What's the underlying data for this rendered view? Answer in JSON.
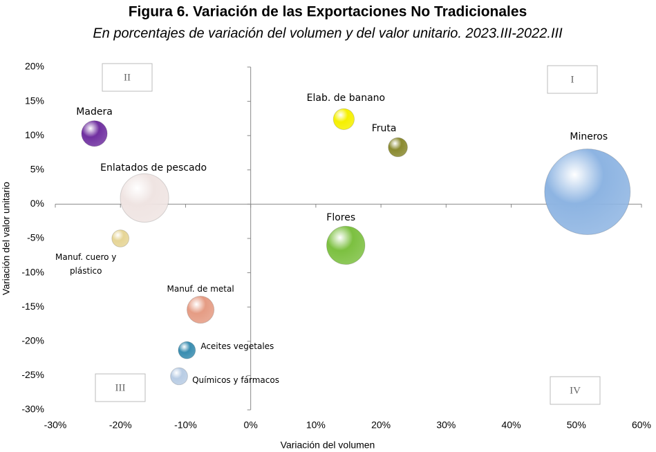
{
  "chart_data": {
    "type": "bubble",
    "title": "Figura 6. Variación de las Exportaciones No Tradicionales",
    "subtitle": "En porcentajes de variación del volumen y del valor unitario. 2023.III-2022.III",
    "xlabel": "Variación del volumen",
    "ylabel": "Variación del valor unitario",
    "xlim": [
      -30,
      60
    ],
    "ylim": [
      -30,
      20
    ],
    "xticks": [
      {
        "value": -30,
        "label": "-30%"
      },
      {
        "value": -20,
        "label": "-20%"
      },
      {
        "value": -10,
        "label": "-10%"
      },
      {
        "value": 0,
        "label": "0%"
      },
      {
        "value": 10,
        "label": "10%"
      },
      {
        "value": 20,
        "label": "20%"
      },
      {
        "value": 30,
        "label": "30%"
      },
      {
        "value": 40,
        "label": "40%"
      },
      {
        "value": 50,
        "label": "50%"
      },
      {
        "value": 60,
        "label": "60%"
      }
    ],
    "yticks": [
      {
        "value": -30,
        "label": "-30%"
      },
      {
        "value": -25,
        "label": "-25%"
      },
      {
        "value": -20,
        "label": "-20%"
      },
      {
        "value": -15,
        "label": "-15%"
      },
      {
        "value": -10,
        "label": "-10%"
      },
      {
        "value": -5,
        "label": "-5%"
      },
      {
        "value": 0,
        "label": "0%"
      },
      {
        "value": 5,
        "label": "5%"
      },
      {
        "value": 10,
        "label": "10%"
      },
      {
        "value": 15,
        "label": "15%"
      },
      {
        "value": 20,
        "label": "20%"
      }
    ],
    "quadrants": [
      "I",
      "II",
      "III",
      "IV"
    ],
    "series": [
      {
        "name": "Madera",
        "color": "#7030a0",
        "x": [
          -24
        ],
        "values": [
          10.3
        ],
        "sizes": [
          9
        ]
      },
      {
        "name": "Enlatados de pescado",
        "color": "#efe4e2",
        "x": [
          -16.3
        ],
        "values": [
          0.9
        ],
        "sizes": [
          32
        ]
      },
      {
        "name": "Manuf. cuero y plástico",
        "color": "#e6d596",
        "x": [
          -20
        ],
        "values": [
          -5
        ],
        "sizes": [
          4
        ]
      },
      {
        "name": "Manuf. de metal",
        "color": "#e59c84",
        "x": [
          -7.7
        ],
        "values": [
          -15.4
        ],
        "sizes": [
          10
        ]
      },
      {
        "name": "Aceites vegetales",
        "color": "#3a8db0",
        "x": [
          -9.8
        ],
        "values": [
          -21.3
        ],
        "sizes": [
          4
        ]
      },
      {
        "name": "Químicos y fármacos",
        "color": "#b8cce4",
        "x": [
          -11
        ],
        "values": [
          -25.1
        ],
        "sizes": [
          4
        ]
      },
      {
        "name": "Elab. de banano",
        "color": "#f5f000",
        "x": [
          14.3
        ],
        "values": [
          12.4
        ],
        "sizes": [
          6
        ]
      },
      {
        "name": "Fruta",
        "color": "#8a8a30",
        "x": [
          22.6
        ],
        "values": [
          8.3
        ],
        "sizes": [
          5
        ]
      },
      {
        "name": "Mineros",
        "color": "#8db4e2",
        "x": [
          51.7
        ],
        "values": [
          1.8
        ],
        "sizes": [
          100
        ]
      },
      {
        "name": "Flores",
        "color": "#7cc040",
        "x": [
          14.6
        ],
        "values": [
          -6
        ],
        "sizes": [
          20
        ]
      }
    ]
  }
}
